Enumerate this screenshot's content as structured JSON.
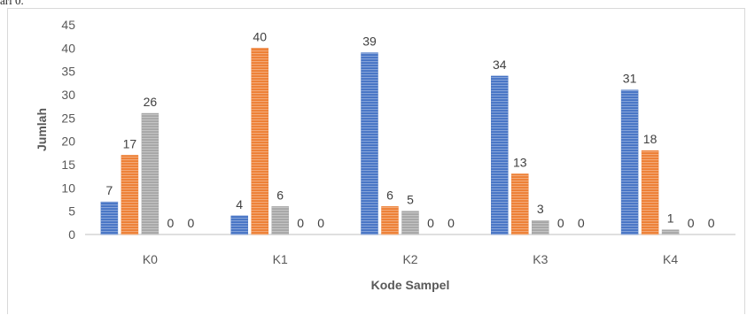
{
  "page": {
    "top_fragment": "ari 0."
  },
  "chart_data": {
    "type": "bar",
    "title": "",
    "xlabel": "Kode Sampel",
    "ylabel": "Jumlah",
    "categories": [
      "K0",
      "K1",
      "K2",
      "K3",
      "K4"
    ],
    "ylim": [
      0,
      45
    ],
    "yticks": [
      0,
      5,
      10,
      15,
      20,
      25,
      30,
      35,
      40,
      45
    ],
    "grid": false,
    "legend": "none",
    "series": [
      {
        "values": [
          7,
          4,
          39,
          34,
          31
        ],
        "color": "#4472c4"
      },
      {
        "values": [
          17,
          40,
          6,
          13,
          18
        ],
        "color": "#ed7d31"
      },
      {
        "values": [
          26,
          6,
          5,
          3,
          1
        ],
        "color": "#a5a5a5"
      },
      {
        "values": [
          0,
          0,
          0,
          0,
          0
        ],
        "color": "#ffc000"
      },
      {
        "values": [
          0,
          0,
          0,
          0,
          0
        ],
        "color": "#5b9bd5"
      }
    ]
  }
}
